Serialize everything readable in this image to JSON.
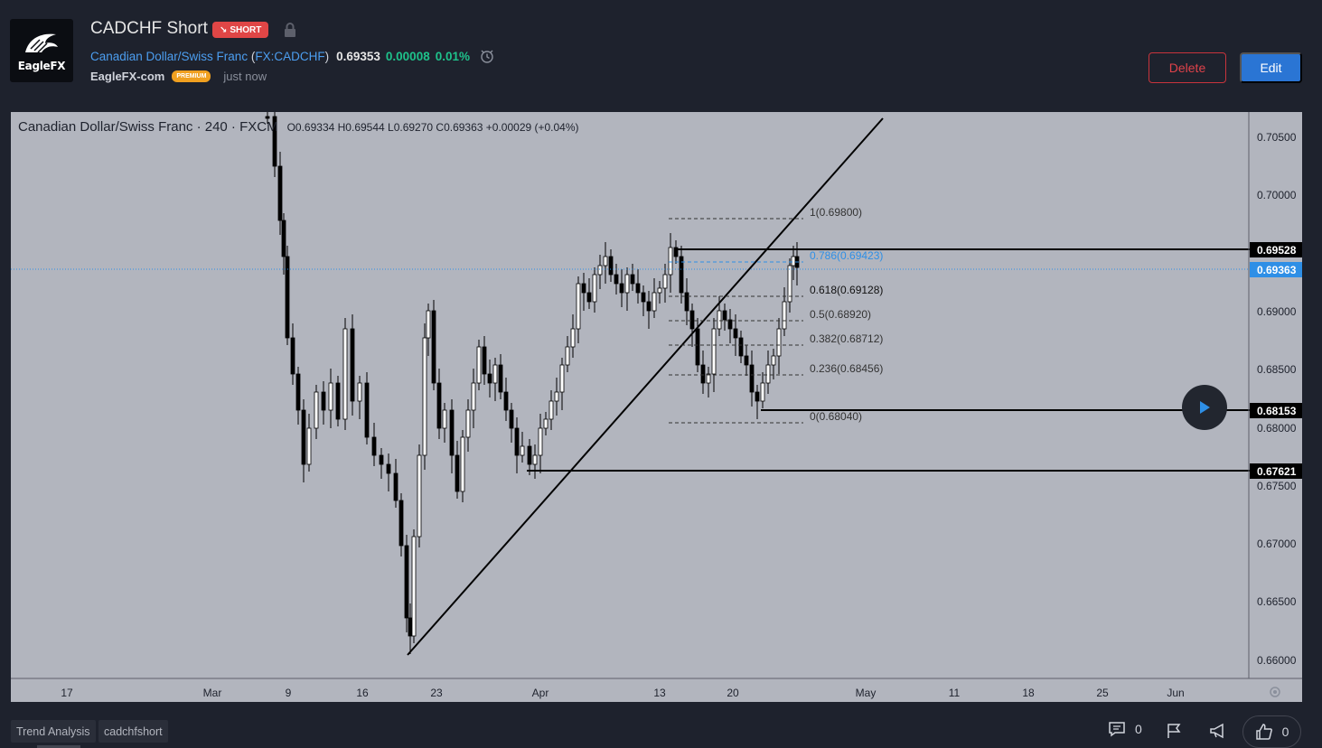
{
  "header": {
    "logo_text": "EagleFX",
    "title": "CADCHF Short",
    "badge": "SHORT",
    "symbol_name": "Canadian Dollar/Swiss Franc",
    "symbol_paren_open": "(",
    "symbol_code": "FX:CADCHF",
    "symbol_paren_close": ")",
    "price": "0.69353",
    "change": "0.00008",
    "change_pct": "0.01%",
    "author": "EagleFX-com",
    "author_badge": "PREMIUM",
    "time": "just now",
    "delete_label": "Delete",
    "edit_label": "Edit"
  },
  "chart": {
    "title": "Canadian Dollar/Swiss Franc · 240 · FXCM",
    "ohlc": "O0.69334  H0.69544  L0.69270  C0.69363  +0.00029 (+0.04%)",
    "y_ticks": [
      "0.70500",
      "0.70000",
      "0.69000",
      "0.68500",
      "0.68000",
      "0.67500",
      "0.67000",
      "0.66500",
      "0.66000"
    ],
    "x_ticks": [
      "17",
      "Mar",
      "9",
      "16",
      "23",
      "Apr",
      "13",
      "20",
      "May",
      "11",
      "18",
      "25",
      "Jun"
    ],
    "price_tags": [
      "0.69528",
      "0.69363",
      "0.68153",
      "0.67621"
    ],
    "fib_levels": [
      "1(0.69800)",
      "0.786(0.69423)",
      "0.618(0.69128)",
      "0.5(0.68920)",
      "0.382(0.68712)",
      "0.236(0.68456)",
      "0(0.68040)"
    ],
    "colors": {
      "background": "#b2b5be",
      "line": "#000000",
      "fib_highlight": "#2e8fe6",
      "current_price": "#2e8fe6"
    }
  },
  "footer": {
    "tags": [
      "Trend Analysis",
      "cadchfshort"
    ],
    "comments_count": "0",
    "likes_count": "0"
  }
}
